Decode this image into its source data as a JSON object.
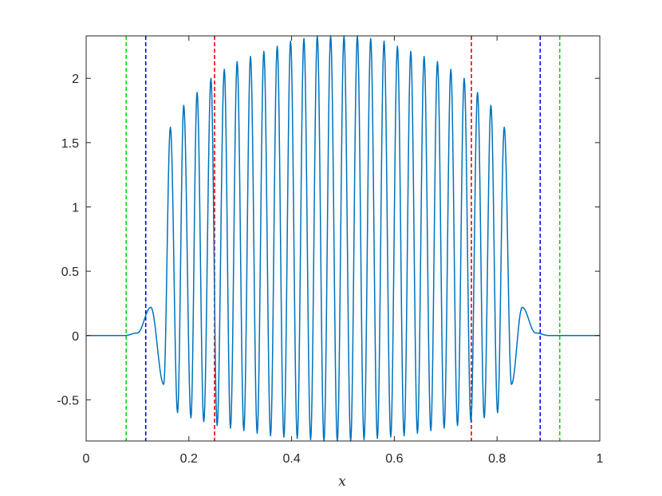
{
  "chart_data": {
    "type": "line",
    "title": "",
    "xlabel": "x",
    "ylabel": "",
    "xlim": [
      0,
      1
    ],
    "ylim": [
      -0.82,
      2.33
    ],
    "x_ticks": [
      0,
      0.2,
      0.4,
      0.6,
      0.8,
      1
    ],
    "x_tick_labels": [
      "0",
      "0.2",
      "0.4",
      "0.6",
      "0.8",
      "1"
    ],
    "y_ticks": [
      -0.5,
      0,
      0.5,
      1,
      1.5,
      2
    ],
    "y_tick_labels": [
      "-0.5",
      "0",
      "0.5",
      "1",
      "1.5",
      "2"
    ],
    "grid": false,
    "series": [
      {
        "color": "#0072bd",
        "peaks": [
          [
            0.049,
            0.0
          ],
          [
            0.075,
            0.0
          ],
          [
            0.1,
            0.02
          ],
          [
            0.126,
            0.22
          ],
          [
            0.151,
            -0.38
          ],
          [
            0.164,
            1.62
          ],
          [
            0.178,
            -0.6
          ],
          [
            0.19,
            1.79
          ],
          [
            0.204,
            -0.64
          ],
          [
            0.216,
            1.89
          ],
          [
            0.229,
            -0.67
          ],
          [
            0.243,
            2.0
          ],
          [
            0.255,
            -0.7
          ],
          [
            0.269,
            2.07
          ],
          [
            0.281,
            -0.72
          ],
          [
            0.294,
            2.13
          ],
          [
            0.307,
            -0.74
          ],
          [
            0.32,
            2.17
          ],
          [
            0.333,
            -0.76
          ],
          [
            0.346,
            2.21
          ],
          [
            0.359,
            -0.78
          ],
          [
            0.372,
            2.25
          ],
          [
            0.385,
            -0.79
          ],
          [
            0.398,
            2.29
          ],
          [
            0.411,
            -0.8
          ],
          [
            0.424,
            2.31
          ],
          [
            0.437,
            -0.81
          ],
          [
            0.45,
            2.33
          ],
          [
            0.463,
            -0.82
          ],
          [
            0.476,
            2.33
          ],
          [
            0.489,
            -0.82
          ],
          [
            0.502,
            2.33
          ],
          [
            0.515,
            -0.82
          ],
          [
            0.528,
            2.33
          ],
          [
            0.541,
            -0.81
          ],
          [
            0.554,
            2.31
          ],
          [
            0.567,
            -0.8
          ],
          [
            0.58,
            2.29
          ],
          [
            0.593,
            -0.79
          ],
          [
            0.606,
            2.25
          ],
          [
            0.619,
            -0.78
          ],
          [
            0.632,
            2.21
          ],
          [
            0.645,
            -0.76
          ],
          [
            0.658,
            2.17
          ],
          [
            0.671,
            -0.74
          ],
          [
            0.684,
            2.13
          ],
          [
            0.697,
            -0.72
          ],
          [
            0.71,
            2.07
          ],
          [
            0.723,
            -0.7
          ],
          [
            0.736,
            2.0
          ],
          [
            0.749,
            -0.67
          ],
          [
            0.762,
            1.89
          ],
          [
            0.775,
            -0.64
          ],
          [
            0.788,
            1.79
          ],
          [
            0.801,
            -0.6
          ],
          [
            0.814,
            1.62
          ],
          [
            0.828,
            -0.38
          ],
          [
            0.849,
            0.22
          ],
          [
            0.875,
            0.02
          ],
          [
            0.901,
            0.0
          ],
          [
            0.926,
            0.0
          ]
        ]
      }
    ],
    "reference_lines": [
      {
        "x": 0.078,
        "color": "#00dd00",
        "style": "dashed"
      },
      {
        "x": 0.116,
        "color": "#0000ee",
        "style": "dashed"
      },
      {
        "x": 0.25,
        "color": "#ee0000",
        "style": "dashed"
      },
      {
        "x": 0.75,
        "color": "#ee0000",
        "style": "dashed"
      },
      {
        "x": 0.884,
        "color": "#0000ee",
        "style": "dashed"
      },
      {
        "x": 0.922,
        "color": "#00dd00",
        "style": "dashed"
      }
    ]
  }
}
